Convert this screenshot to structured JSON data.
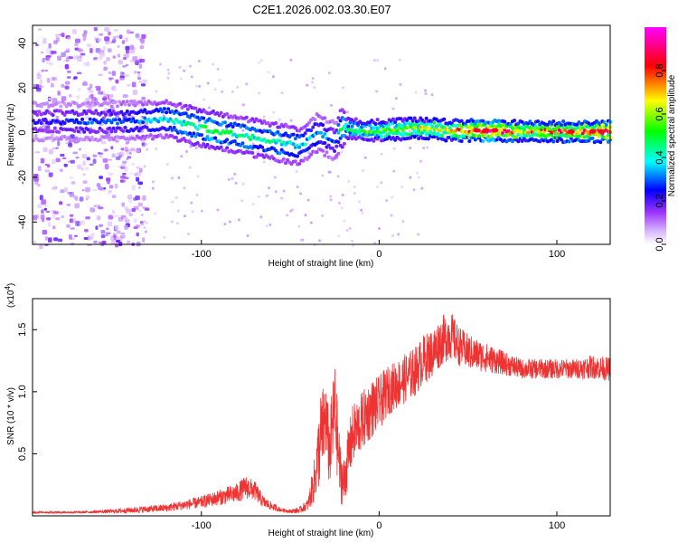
{
  "figure_title": "C2E1.2026.002.03.30.E07",
  "chart_data": [
    {
      "type": "heatmap",
      "title": "C2E1.2026.002.03.30.E07",
      "xlabel": "Height of straight line (km)",
      "ylabel": "Frequency (Hz)",
      "xlim": [
        -195,
        130
      ],
      "ylim": [
        -50,
        48
      ],
      "xticks": [
        -100,
        0,
        100
      ],
      "yticks": [
        -40,
        -20,
        0,
        20,
        40
      ],
      "colorbar": {
        "label": "Normalized spectral amplitude",
        "range": [
          0,
          1
        ],
        "ticks": [
          0.0,
          0.2,
          0.4,
          0.6,
          0.8
        ],
        "colormap": [
          "#ffffff",
          "#9b30ff",
          "#0000ff",
          "#00ffff",
          "#00ff00",
          "#ffff00",
          "#ff0000",
          "#ff00ff"
        ]
      },
      "ridge": {
        "description": "dominant frequency band vs height",
        "x": [
          -195,
          -150,
          -120,
          -100,
          -80,
          -60,
          -45,
          -35,
          -25,
          -22,
          -10,
          0,
          20,
          40,
          60,
          80,
          100,
          130
        ],
        "y": [
          5,
          5,
          6,
          2,
          -1,
          -4,
          -6,
          0,
          -4,
          2,
          1,
          1,
          2,
          1,
          1,
          0.5,
          0.5,
          0.5
        ],
        "amplitude": [
          0.25,
          0.3,
          0.4,
          0.5,
          0.45,
          0.45,
          0.4,
          0.35,
          0.3,
          0.5,
          0.55,
          0.6,
          0.65,
          0.7,
          0.95,
          0.75,
          0.8,
          0.9
        ]
      },
      "noise_region": {
        "x_range": [
          -195,
          -140
        ],
        "freq_range": [
          -50,
          48
        ],
        "amplitude": 0.15
      },
      "fill_value": "#ffffff",
      "ridge_color": "#7b2cf0"
    },
    {
      "type": "line",
      "xlabel": "Height of straight line (km)",
      "ylabel": "SNR (10 * v/v)",
      "scale_label": "(x10",
      "scale_exp": "4",
      "scale_close": ")",
      "xlim": [
        -195,
        130
      ],
      "ylim": [
        0,
        1.75
      ],
      "xticks": [
        -100,
        0,
        100
      ],
      "yticks": [
        0.5,
        1.0,
        1.5
      ],
      "ytick_labels": [
        "0.5",
        "1.0",
        "1.5"
      ],
      "color": "#ee3333",
      "series": [
        {
          "name": "SNR",
          "x": [
            -195,
            -170,
            -150,
            -140,
            -120,
            -100,
            -90,
            -80,
            -75,
            -70,
            -65,
            -60,
            -55,
            -50,
            -45,
            -40,
            -36,
            -33,
            -30,
            -28,
            -25,
            -22,
            -20,
            -17,
            -15,
            -10,
            -5,
            0,
            5,
            10,
            15,
            20,
            25,
            30,
            35,
            40,
            45,
            50,
            60,
            70,
            80,
            90,
            100,
            110,
            120,
            130
          ],
          "y": [
            0.03,
            0.03,
            0.04,
            0.05,
            0.07,
            0.12,
            0.16,
            0.2,
            0.25,
            0.22,
            0.12,
            0.08,
            0.05,
            0.04,
            0.05,
            0.1,
            0.35,
            0.7,
            0.85,
            0.55,
            0.95,
            0.4,
            0.3,
            0.55,
            0.7,
            0.8,
            0.9,
            0.95,
            1.05,
            1.1,
            1.15,
            1.2,
            1.3,
            1.35,
            1.45,
            1.5,
            1.4,
            1.35,
            1.3,
            1.25,
            1.2,
            1.2,
            1.2,
            1.2,
            1.22,
            1.2
          ],
          "envelope": [
            0.01,
            0.01,
            0.02,
            0.03,
            0.04,
            0.06,
            0.08,
            0.1,
            0.12,
            0.1,
            0.06,
            0.04,
            0.02,
            0.02,
            0.03,
            0.06,
            0.25,
            0.45,
            0.4,
            0.35,
            0.5,
            0.3,
            0.25,
            0.3,
            0.3,
            0.3,
            0.3,
            0.28,
            0.25,
            0.25,
            0.25,
            0.25,
            0.25,
            0.25,
            0.25,
            0.25,
            0.2,
            0.18,
            0.15,
            0.12,
            0.1,
            0.1,
            0.1,
            0.1,
            0.12,
            0.12
          ]
        }
      ]
    }
  ]
}
